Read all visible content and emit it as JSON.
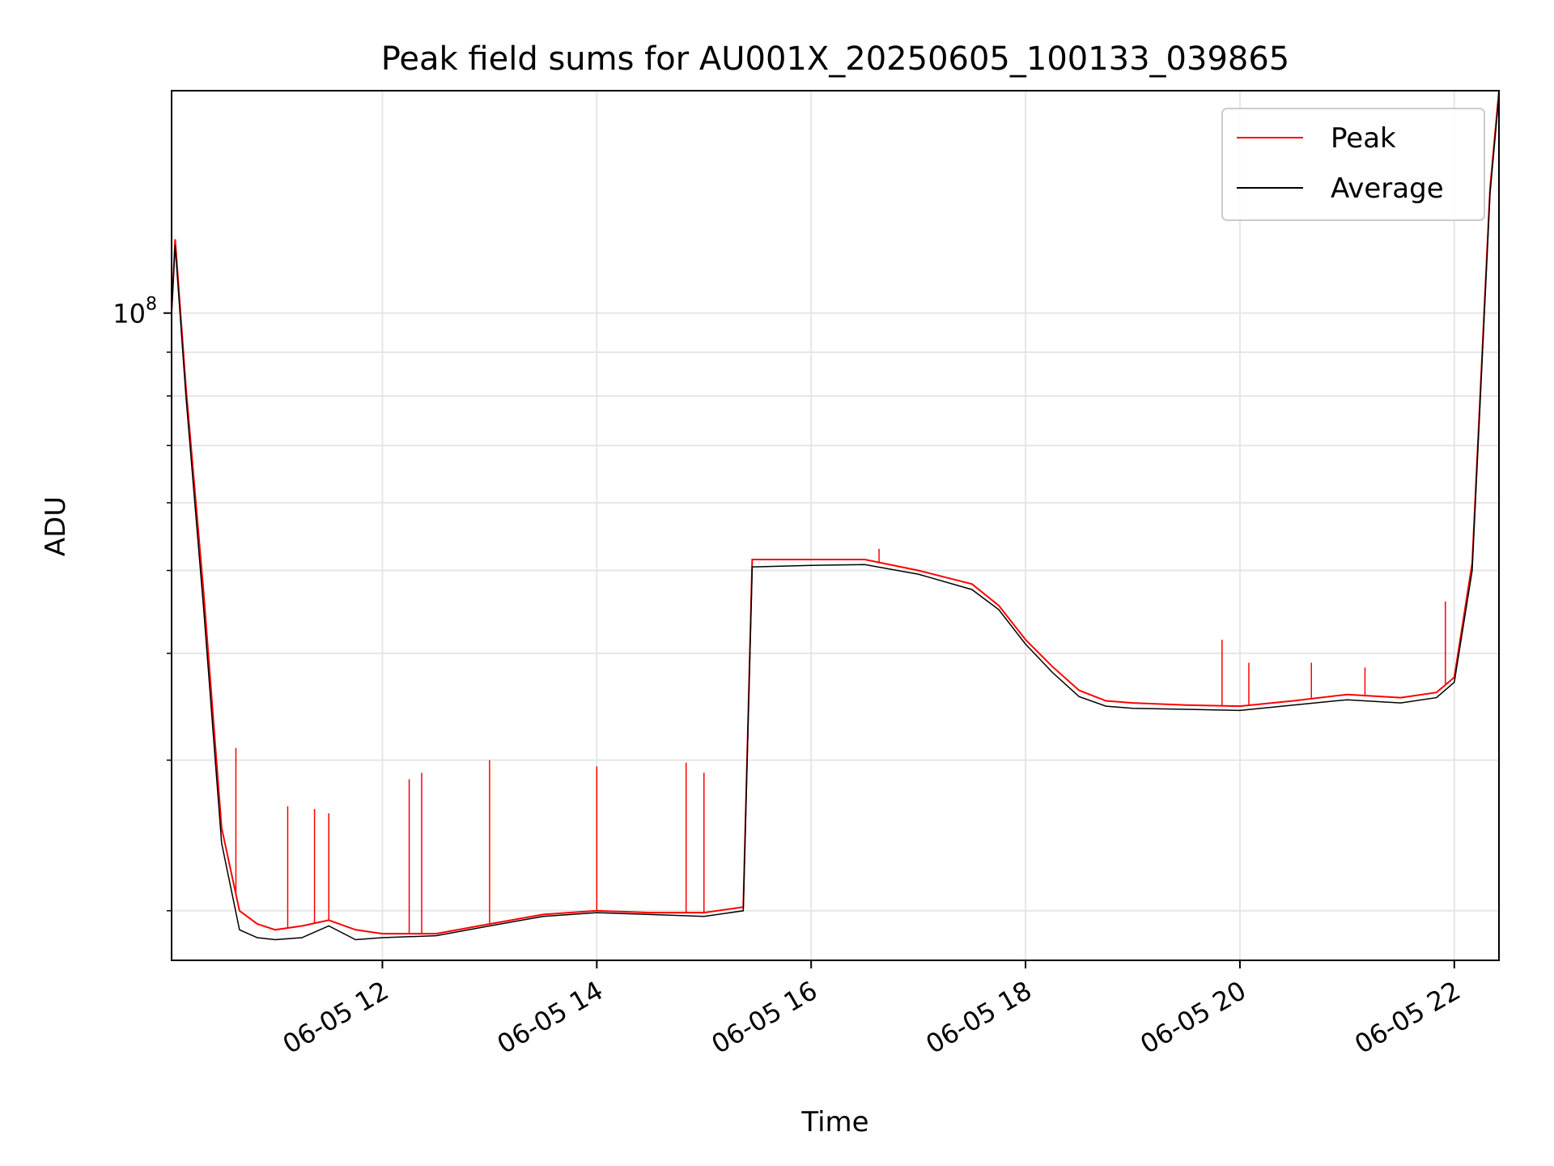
{
  "chart_data": {
    "type": "line",
    "title": "Peak field sums for AU001X_20250605_100133_039865",
    "xlabel": "Time",
    "ylabel": "ADU",
    "x_axis": {
      "type": "datetime",
      "range": [
        "06-05 10:02",
        "06-05 22:25"
      ],
      "ticks": [
        {
          "value": "06-05 12:00",
          "label": "06-05 12"
        },
        {
          "value": "06-05 14:00",
          "label": "06-05 14"
        },
        {
          "value": "06-05 16:00",
          "label": "06-05 16"
        },
        {
          "value": "06-05 18:00",
          "label": "06-05 18"
        },
        {
          "value": "06-05 20:00",
          "label": "06-05 20"
        },
        {
          "value": "06-05 22:00",
          "label": "06-05 22"
        }
      ]
    },
    "y_axis": {
      "scale": "log",
      "range": [
        17500000,
        182000000
      ],
      "major_tick": {
        "value": 100000000,
        "label_base": "10",
        "label_exp": "8"
      },
      "minor_ticks": [
        20000000,
        30000000,
        40000000,
        50000000,
        60000000,
        70000000,
        80000000,
        90000000,
        200000000
      ]
    },
    "grid": true,
    "legend": {
      "placement": "top-right",
      "entries": [
        {
          "name": "Peak",
          "color": "#ff0000"
        },
        {
          "name": "Average",
          "color": "#000000"
        }
      ]
    },
    "x": [
      "06-05 10:02",
      "06-05 10:04",
      "06-05 10:10",
      "06-05 10:20",
      "06-05 10:30",
      "06-05 10:40",
      "06-05 10:50",
      "06-05 11:00",
      "06-05 11:15",
      "06-05 11:30",
      "06-05 11:45",
      "06-05 12:00",
      "06-05 12:30",
      "06-05 13:00",
      "06-05 13:30",
      "06-05 14:00",
      "06-05 14:30",
      "06-05 15:00",
      "06-05 15:22",
      "06-05 15:27",
      "06-05 15:30",
      "06-05 16:00",
      "06-05 16:30",
      "06-05 17:00",
      "06-05 17:30",
      "06-05 17:45",
      "06-05 18:00",
      "06-05 18:15",
      "06-05 18:30",
      "06-05 18:45",
      "06-05 19:00",
      "06-05 19:30",
      "06-05 20:00",
      "06-05 20:30",
      "06-05 21:00",
      "06-05 21:30",
      "06-05 21:50",
      "06-05 22:00",
      "06-05 22:10",
      "06-05 22:20",
      "06-05 22:25"
    ],
    "series": [
      {
        "name": "Peak",
        "color": "#ff0000",
        "values": [
          100000000,
          122000000,
          82000000,
          47000000,
          25000000,
          20000000,
          19300000,
          19000000,
          19200000,
          19500000,
          19000000,
          18800000,
          18800000,
          19300000,
          19800000,
          20000000,
          19900000,
          19900000,
          20200000,
          51500000,
          51500000,
          51500000,
          51500000,
          50000000,
          48200000,
          45500000,
          41500000,
          38600000,
          36200000,
          35200000,
          35000000,
          34800000,
          34700000,
          35200000,
          35800000,
          35500000,
          36000000,
          37500000,
          51000000,
          140000000,
          182000000
        ],
        "spikes": [
          {
            "x": "06-05 10:38",
            "y": 31000000
          },
          {
            "x": "06-05 11:07",
            "y": 26500000
          },
          {
            "x": "06-05 11:22",
            "y": 26300000
          },
          {
            "x": "06-05 11:30",
            "y": 26000000
          },
          {
            "x": "06-05 12:15",
            "y": 28500000
          },
          {
            "x": "06-05 12:22",
            "y": 29000000
          },
          {
            "x": "06-05 13:00",
            "y": 30000000
          },
          {
            "x": "06-05 14:00",
            "y": 29500000
          },
          {
            "x": "06-05 14:50",
            "y": 29800000
          },
          {
            "x": "06-05 15:00",
            "y": 29000000
          },
          {
            "x": "06-05 16:38",
            "y": 53000000
          },
          {
            "x": "06-05 19:50",
            "y": 41500000
          },
          {
            "x": "06-05 20:05",
            "y": 39000000
          },
          {
            "x": "06-05 20:40",
            "y": 39000000
          },
          {
            "x": "06-05 21:10",
            "y": 38500000
          },
          {
            "x": "06-05 21:55",
            "y": 46000000
          }
        ]
      },
      {
        "name": "Average",
        "color": "#000000",
        "values": [
          100000000,
          120000000,
          80000000,
          45000000,
          24000000,
          19000000,
          18600000,
          18500000,
          18600000,
          19200000,
          18500000,
          18600000,
          18700000,
          19200000,
          19700000,
          19900000,
          19800000,
          19700000,
          20000000,
          50500000,
          50500000,
          50700000,
          50800000,
          49500000,
          47500000,
          45000000,
          41000000,
          38000000,
          35600000,
          34700000,
          34500000,
          34400000,
          34300000,
          34800000,
          35300000,
          35000000,
          35500000,
          37000000,
          50000000,
          138000000,
          180000000
        ]
      }
    ]
  }
}
